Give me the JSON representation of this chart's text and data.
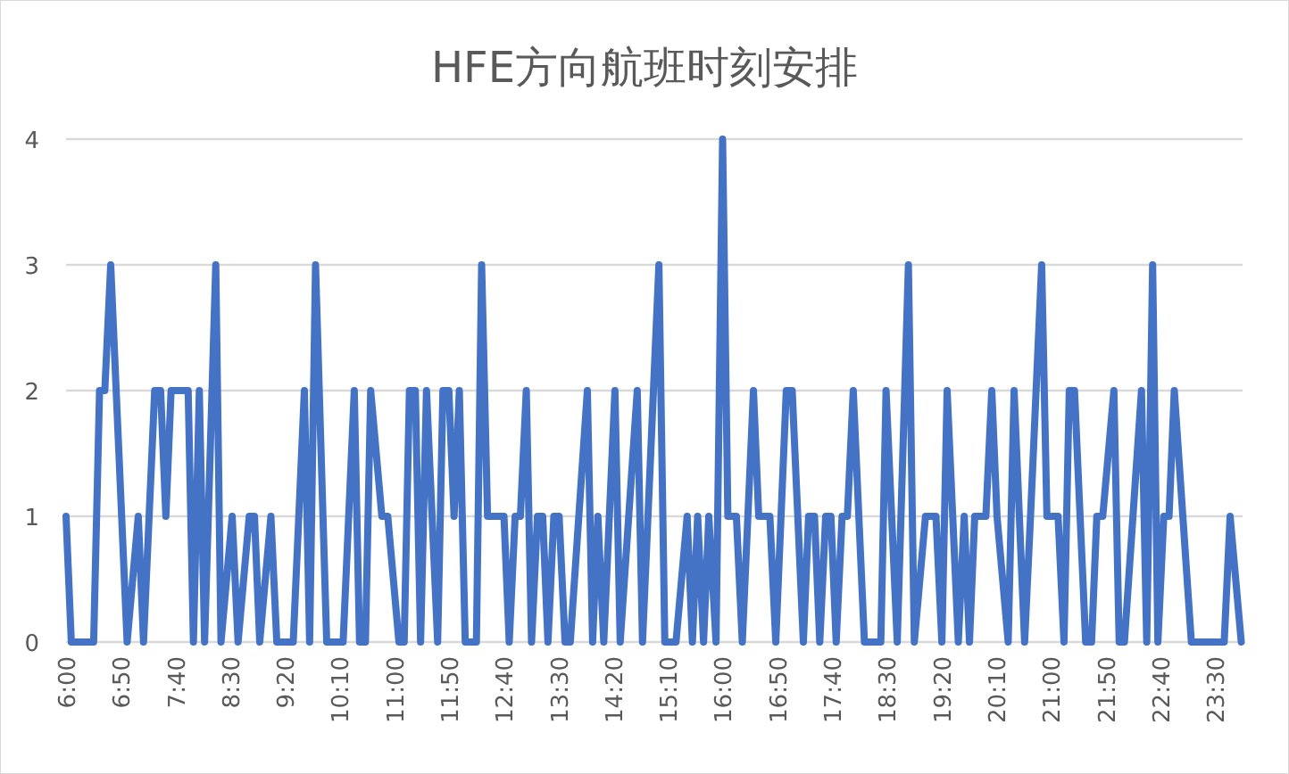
{
  "chart_data": {
    "type": "line",
    "title": "HFE方向航班时刻安排",
    "color": "#4472c4",
    "grid": "y",
    "xlim": [
      6,
      23.92
    ],
    "ylim": [
      0,
      4
    ],
    "yticks": [
      0,
      1,
      2,
      3,
      4
    ],
    "xticks": [
      {
        "value": 6,
        "label": "6:00"
      },
      {
        "value": 6.8333,
        "label": "6:50"
      },
      {
        "value": 7.6667,
        "label": "7:40"
      },
      {
        "value": 8.5,
        "label": "8:30"
      },
      {
        "value": 9.3333,
        "label": "9:20"
      },
      {
        "value": 10.1667,
        "label": "10:10"
      },
      {
        "value": 11,
        "label": "11:00"
      },
      {
        "value": 11.8333,
        "label": "11:50"
      },
      {
        "value": 12.6667,
        "label": "12:40"
      },
      {
        "value": 13.5,
        "label": "13:30"
      },
      {
        "value": 14.3333,
        "label": "14:20"
      },
      {
        "value": 15.1667,
        "label": "15:10"
      },
      {
        "value": 16,
        "label": "16:00"
      },
      {
        "value": 16.8333,
        "label": "16:50"
      },
      {
        "value": 17.6667,
        "label": "17:40"
      },
      {
        "value": 18.5,
        "label": "18:30"
      },
      {
        "value": 19.3333,
        "label": "19:20"
      },
      {
        "value": 20.1667,
        "label": "20:10"
      },
      {
        "value": 21,
        "label": "21:00"
      },
      {
        "value": 21.8333,
        "label": "21:50"
      },
      {
        "value": 22.6667,
        "label": "22:40"
      },
      {
        "value": 23.5,
        "label": "23:30"
      }
    ],
    "x": [
      6.0,
      6.08,
      6.42,
      6.51,
      6.59,
      6.68,
      6.93,
      7.1,
      7.18,
      7.35,
      7.44,
      7.52,
      7.6,
      7.86,
      7.94,
      8.03,
      8.11,
      8.28,
      8.36,
      8.53,
      8.62,
      8.79,
      8.87,
      8.95,
      9.12,
      9.21,
      9.46,
      9.63,
      9.71,
      9.8,
      9.97,
      10.22,
      10.39,
      10.47,
      10.56,
      10.64,
      10.81,
      10.9,
      11.07,
      11.15,
      11.23,
      11.32,
      11.4,
      11.49,
      11.66,
      11.74,
      11.83,
      11.91,
      11.99,
      12.08,
      12.25,
      12.33,
      12.42,
      12.67,
      12.75,
      12.84,
      12.92,
      13.01,
      13.09,
      13.18,
      13.26,
      13.34,
      13.43,
      13.51,
      13.6,
      13.68,
      13.94,
      14.02,
      14.1,
      14.19,
      14.36,
      14.44,
      14.7,
      14.78,
      15.03,
      15.12,
      15.29,
      15.46,
      15.54,
      15.62,
      15.71,
      15.79,
      15.9,
      16.0,
      16.08,
      16.21,
      16.3,
      16.47,
      16.55,
      16.72,
      16.81,
      16.97,
      17.06,
      17.23,
      17.31,
      17.4,
      17.48,
      17.57,
      17.65,
      17.73,
      17.82,
      17.9,
      17.99,
      18.16,
      18.41,
      18.49,
      18.66,
      18.83,
      18.92,
      19.09,
      19.25,
      19.34,
      19.42,
      19.59,
      19.68,
      19.76,
      19.84,
      20.01,
      20.1,
      20.18,
      20.35,
      20.44,
      20.6,
      20.69,
      20.86,
      20.94,
      21.11,
      21.2,
      21.28,
      21.36,
      21.53,
      21.62,
      21.7,
      21.79,
      21.96,
      22.04,
      22.12,
      22.38,
      22.46,
      22.55,
      22.63,
      22.72,
      22.8,
      22.88,
      23.14,
      23.64,
      23.73,
      23.9
    ],
    "values": [
      1,
      0,
      0,
      2,
      2,
      3,
      0,
      1,
      0,
      2,
      2,
      1,
      2,
      2,
      0,
      2,
      0,
      3,
      0,
      1,
      0,
      1,
      1,
      0,
      1,
      0,
      0,
      2,
      0,
      3,
      0,
      0,
      2,
      0,
      0,
      2,
      1,
      1,
      0,
      0,
      2,
      2,
      0,
      2,
      0,
      2,
      2,
      1,
      2,
      0,
      0,
      3,
      1,
      1,
      0,
      1,
      1,
      2,
      0,
      1,
      1,
      0,
      1,
      1,
      0,
      0,
      2,
      0,
      1,
      0,
      2,
      0,
      2,
      0,
      3,
      0,
      0,
      1,
      0,
      1,
      0,
      1,
      0,
      4,
      1,
      1,
      0,
      2,
      1,
      1,
      0,
      2,
      2,
      0,
      1,
      1,
      0,
      1,
      1,
      0,
      1,
      1,
      2,
      0,
      0,
      2,
      0,
      3,
      0,
      1,
      1,
      0,
      2,
      0,
      1,
      0,
      1,
      1,
      2,
      1,
      0,
      2,
      0,
      1,
      3,
      1,
      1,
      0,
      2,
      2,
      0,
      0,
      1,
      1,
      2,
      0,
      0,
      2,
      0,
      3,
      0,
      1,
      1,
      2,
      0,
      0,
      1,
      0
    ]
  }
}
